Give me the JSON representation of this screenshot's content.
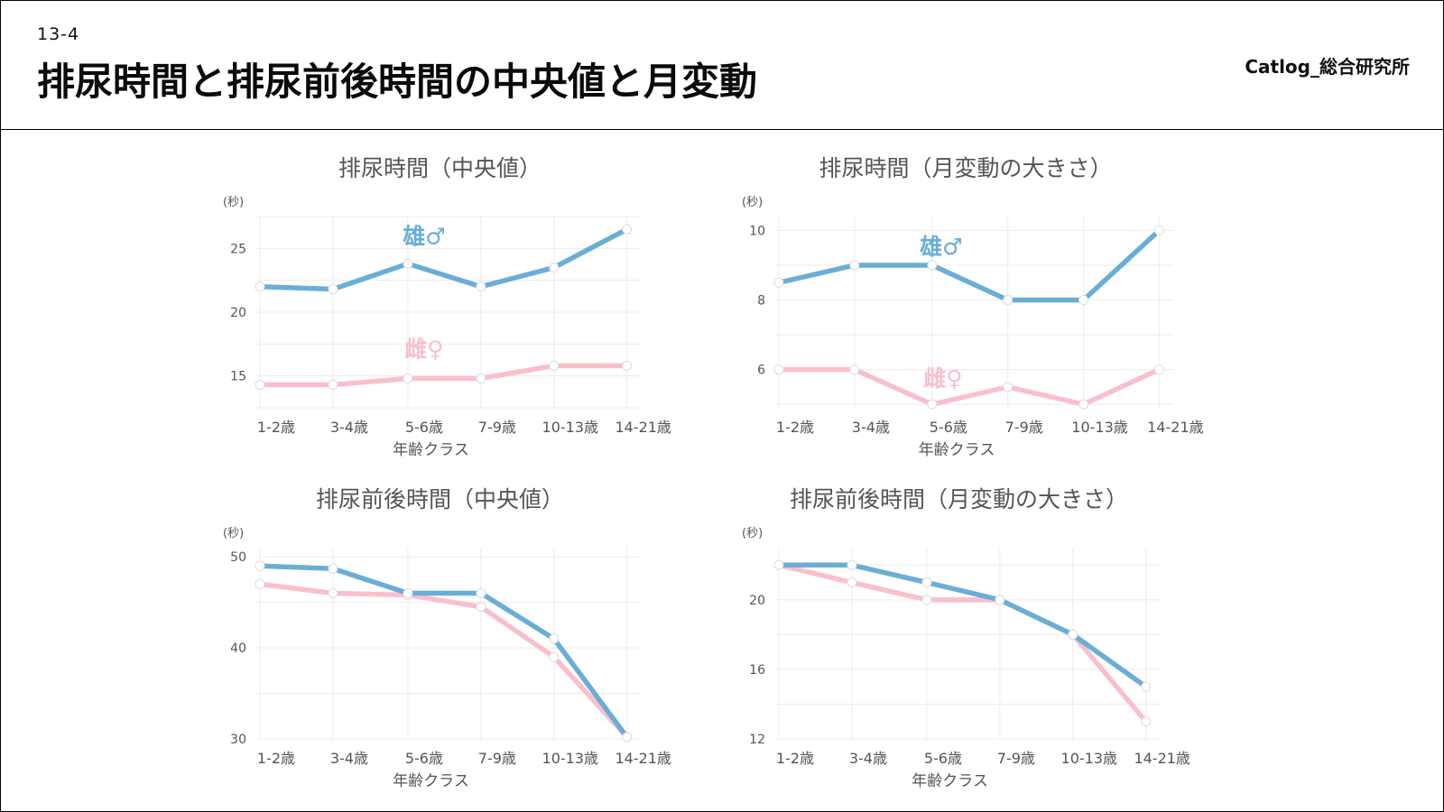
{
  "header": {
    "section_number": "13-4",
    "title": "排尿時間と排尿前後時間の中央値と月変動",
    "brand": "Catlog_総合研究所"
  },
  "colors": {
    "male": "#6aaed6",
    "female": "#f9c0cc",
    "marker_fill": "#ffffff",
    "grid": "#ececec",
    "text": "#555555"
  },
  "chart_data": [
    {
      "type": "line",
      "title": "排尿時間（中央値）",
      "unit": "(秒)",
      "xlabel": "年齢クラス",
      "categories": [
        "1-2歳",
        "3-4歳",
        "5-6歳",
        "7-9歳",
        "10-13歳",
        "14-21歳"
      ],
      "yticks": [
        15,
        20,
        25
      ],
      "ylim": [
        12.5,
        27.5
      ],
      "series": [
        {
          "name": "雄♂",
          "color_key": "male",
          "values": [
            22,
            21.8,
            23.8,
            22,
            23.5,
            26.5
          ]
        },
        {
          "name": "雌♀",
          "color_key": "female",
          "values": [
            14.3,
            14.3,
            14.8,
            14.8,
            15.8,
            15.8
          ]
        }
      ],
      "grid": true
    },
    {
      "type": "line",
      "title": "排尿時間（月変動の大きさ）",
      "unit": "(秒)",
      "xlabel": "年齢クラス",
      "categories": [
        "1-2歳",
        "3-4歳",
        "5-6歳",
        "7-9歳",
        "10-13歳",
        "14-21歳"
      ],
      "yticks": [
        6,
        8,
        10
      ],
      "ylim": [
        4.9,
        10.4
      ],
      "series": [
        {
          "name": "雄♂",
          "color_key": "male",
          "values": [
            8.5,
            9,
            9,
            8,
            8,
            10
          ]
        },
        {
          "name": "雌♀",
          "color_key": "female",
          "values": [
            6,
            6,
            5,
            5.5,
            5,
            6
          ]
        }
      ],
      "grid": true
    },
    {
      "type": "line",
      "title": "排尿前後時間（中央値）",
      "unit": "(秒)",
      "xlabel": "年齢クラス",
      "categories": [
        "1-2歳",
        "3-4歳",
        "5-6歳",
        "7-9歳",
        "10-13歳",
        "14-21歳"
      ],
      "yticks": [
        30,
        40,
        50
      ],
      "ylim": [
        30,
        51
      ],
      "series": [
        {
          "name": "雄♂",
          "color_key": "male",
          "values": [
            49,
            48.7,
            46,
            46,
            41,
            30.2
          ]
        },
        {
          "name": "雌♀",
          "color_key": "female",
          "values": [
            47,
            46,
            45.8,
            44.5,
            39,
            30.2
          ]
        }
      ],
      "grid": true
    },
    {
      "type": "line",
      "title": "排尿前後時間（月変動の大きさ）",
      "unit": "(秒)",
      "xlabel": "年齢クラス",
      "categories": [
        "1-2歳",
        "3-4歳",
        "5-6歳",
        "7-9歳",
        "10-13歳",
        "14-21歳"
      ],
      "yticks": [
        12,
        16,
        20
      ],
      "ylim": [
        12,
        23
      ],
      "series": [
        {
          "name": "雄♂",
          "color_key": "male",
          "values": [
            22,
            22,
            21,
            20,
            18,
            15
          ]
        },
        {
          "name": "雌♀",
          "color_key": "female",
          "values": [
            22,
            21,
            20,
            20,
            18,
            13
          ]
        }
      ],
      "grid": true
    }
  ]
}
